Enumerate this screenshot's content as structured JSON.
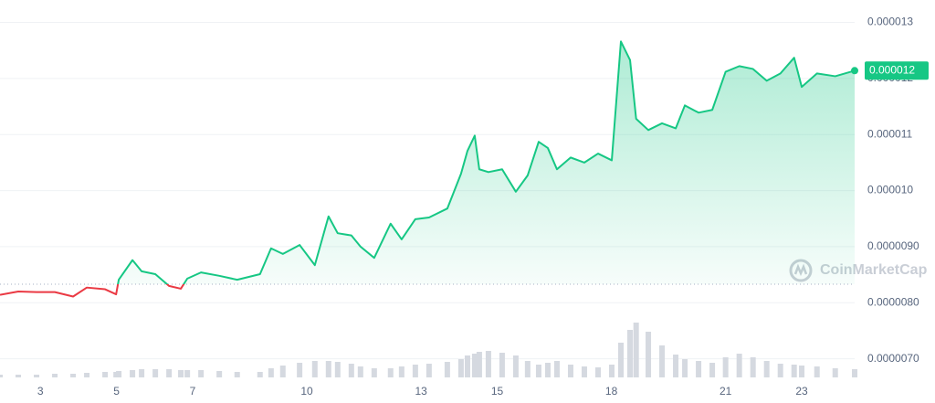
{
  "chart_data": {
    "type": "line",
    "x": [
      1.94,
      2.42,
      2.9,
      3.38,
      3.86,
      4.22,
      4.7,
      4.99,
      5.06,
      5.42,
      5.66,
      6.02,
      6.38,
      6.69,
      6.86,
      7.22,
      7.7,
      8.17,
      8.77,
      9.06,
      9.37,
      9.81,
      10.21,
      10.57,
      10.81,
      11.17,
      11.41,
      11.77,
      12.2,
      12.49,
      12.85,
      13.21,
      13.69,
      14.05,
      14.22,
      14.41,
      14.53,
      14.77,
      15.13,
      15.49,
      15.8,
      16.09,
      16.33,
      16.57,
      16.93,
      17.29,
      17.65,
      18.01,
      18.25,
      18.49,
      18.65,
      18.97,
      19.33,
      19.69,
      19.93,
      20.29,
      20.65,
      21.0,
      21.36,
      21.72,
      22.08,
      22.44,
      22.8,
      23.0,
      23.4,
      23.88,
      24.39
    ],
    "series": [
      {
        "color": "#16c784",
        "below_color": "#ea3943",
        "values": [
          8.14e-06,
          8.2e-06,
          8.19e-06,
          8.19e-06,
          8.11e-06,
          8.27e-06,
          8.24e-06,
          8.15e-06,
          8.41e-06,
          8.76e-06,
          8.56e-06,
          8.51e-06,
          8.3e-06,
          8.25e-06,
          8.43e-06,
          8.54e-06,
          8.48e-06,
          8.41e-06,
          8.51e-06,
          8.97e-06,
          8.87e-06,
          9.03e-06,
          8.67e-06,
          9.54e-06,
          9.24e-06,
          9.2e-06,
          9e-06,
          8.8e-06,
          9.41e-06,
          9.13e-06,
          9.49e-06,
          9.52e-06,
          9.68e-06,
          1.03e-05,
          1.071e-05,
          1.098e-05,
          1.038e-05,
          1.033e-05,
          1.038e-05,
          9.98e-06,
          1.027e-05,
          1.087e-05,
          1.076e-05,
          1.038e-05,
          1.059e-05,
          1.05e-05,
          1.066e-05,
          1.054e-05,
          1.266e-05,
          1.233e-05,
          1.128e-05,
          1.108e-05,
          1.12e-05,
          1.111e-05,
          1.152e-05,
          1.139e-05,
          1.144e-05,
          1.212e-05,
          1.222e-05,
          1.217e-05,
          1.196e-05,
          1.209e-05,
          1.237e-05,
          1.185e-05,
          1.209e-05,
          1.204e-05,
          1.214e-05
        ]
      }
    ],
    "volume": {
      "color": "#d5d9e0",
      "values": [
        3,
        3,
        3,
        4,
        4,
        5,
        6,
        6,
        7,
        8,
        9,
        9,
        9,
        8,
        8,
        8,
        7,
        6,
        6,
        10,
        13,
        16,
        18,
        18,
        17,
        15,
        12,
        10,
        10,
        12,
        14,
        15,
        17,
        20,
        24,
        26,
        28,
        29,
        27,
        24,
        18,
        14,
        16,
        18,
        14,
        12,
        11,
        14,
        38,
        52,
        60,
        50,
        35,
        25,
        20,
        18,
        16,
        22,
        26,
        22,
        18,
        15,
        14,
        13,
        12,
        10,
        9
      ]
    },
    "reference_price": 8.33e-06,
    "current_price": {
      "value": 1.214e-05,
      "label": "0.000012"
    },
    "xlim": [
      1.94,
      24.39
    ],
    "xticks": [
      3,
      5,
      7,
      10,
      13,
      15,
      18,
      21,
      23
    ],
    "ylim": [
      6.7e-06,
      1.34e-05
    ],
    "yticks": [
      {
        "value": 7e-06,
        "label": "0.0000070"
      },
      {
        "value": 8e-06,
        "label": "0.0000080"
      },
      {
        "value": 9e-06,
        "label": "0.0000090"
      },
      {
        "value": 1e-05,
        "label": "0.000010"
      },
      1.1e-05,
      1.2e-05,
      1.3e-05
    ],
    "grid": true,
    "watermark": "CoinMarketCap"
  }
}
